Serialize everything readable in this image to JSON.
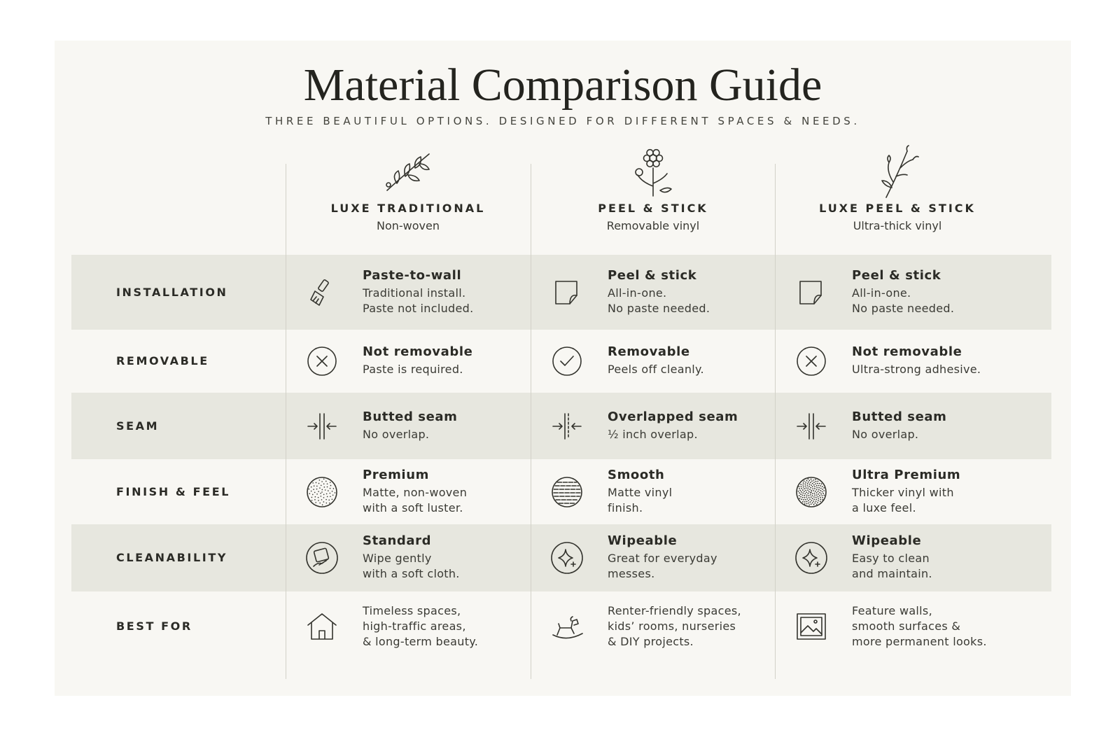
{
  "header": {
    "title": "Material Comparison Guide",
    "subtitle": "THREE BEAUTIFUL OPTIONS. DESIGNED FOR DIFFERENT SPACES & NEEDS."
  },
  "columns": [
    {
      "name": "LUXE TRADITIONAL",
      "subtitle": "Non-woven"
    },
    {
      "name": "PEEL & STICK",
      "subtitle": "Removable vinyl"
    },
    {
      "name": "LUXE PEEL & STICK",
      "subtitle": "Ultra-thick vinyl"
    }
  ],
  "rows": [
    {
      "label": "INSTALLATION",
      "cells": [
        {
          "heading": "Paste-to-wall",
          "lines": [
            "Traditional install.",
            "Paste not included."
          ]
        },
        {
          "heading": "Peel & stick",
          "lines": [
            "All-in-one.",
            "No paste needed."
          ]
        },
        {
          "heading": "Peel & stick",
          "lines": [
            "All-in-one.",
            "No paste needed."
          ]
        }
      ]
    },
    {
      "label": "REMOVABLE",
      "cells": [
        {
          "heading": "Not removable",
          "lines": [
            "Paste is required."
          ]
        },
        {
          "heading": "Removable",
          "lines": [
            "Peels off cleanly."
          ]
        },
        {
          "heading": "Not removable",
          "lines": [
            "Ultra-strong adhesive."
          ]
        }
      ]
    },
    {
      "label": "SEAM",
      "cells": [
        {
          "heading": "Butted seam",
          "lines": [
            "No overlap."
          ]
        },
        {
          "heading": "Overlapped seam",
          "lines": [
            "½ inch overlap."
          ]
        },
        {
          "heading": "Butted seam",
          "lines": [
            "No overlap."
          ]
        }
      ]
    },
    {
      "label": "FINISH & FEEL",
      "cells": [
        {
          "heading": "Premium",
          "lines": [
            "Matte, non-woven",
            "with a soft luster."
          ]
        },
        {
          "heading": "Smooth",
          "lines": [
            "Matte vinyl",
            "finish."
          ]
        },
        {
          "heading": "Ultra Premium",
          "lines": [
            "Thicker vinyl with",
            "a luxe feel."
          ]
        }
      ]
    },
    {
      "label": "CLEANABILITY",
      "cells": [
        {
          "heading": "Standard",
          "lines": [
            "Wipe gently",
            "with a soft cloth."
          ]
        },
        {
          "heading": "Wipeable",
          "lines": [
            "Great for everyday",
            "messes."
          ]
        },
        {
          "heading": "Wipeable",
          "lines": [
            "Easy to clean",
            "and maintain."
          ]
        }
      ]
    },
    {
      "label": "BEST FOR",
      "cells": [
        {
          "lines": [
            "Timeless spaces,",
            "high-traffic areas,",
            "& long-term beauty."
          ]
        },
        {
          "lines": [
            "Renter-friendly spaces,",
            "kids’ rooms, nurseries",
            "& DIY projects."
          ]
        },
        {
          "lines": [
            "Feature walls,",
            "smooth surfaces &",
            "more permanent looks."
          ]
        }
      ]
    }
  ]
}
